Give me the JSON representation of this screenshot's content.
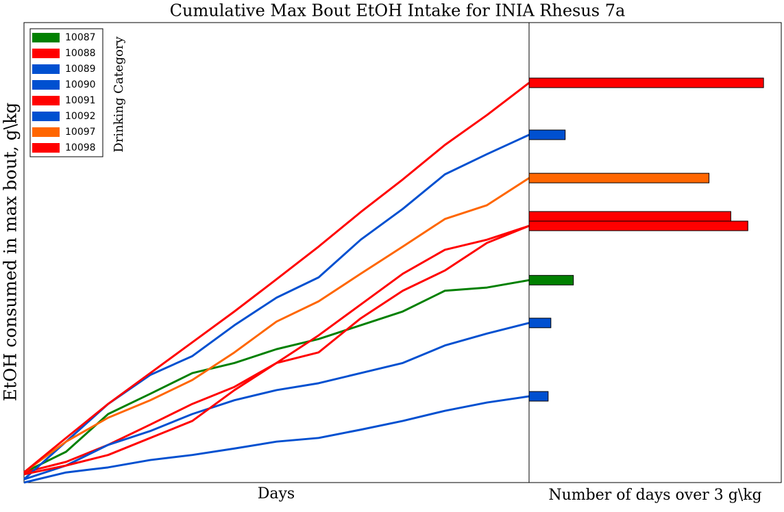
{
  "chart_data": {
    "type": "line",
    "title": "Cumulative Max Bout EtOH Intake for INIA Rhesus 7a",
    "x_label": "Days",
    "y_label": "EtOH consumed in max bout, g\\kg",
    "legend_title": "Drinking Category",
    "bar_label": "Number of days over  3 g\\kg",
    "legend": "upper left",
    "x": [
      0,
      3,
      6,
      9,
      12,
      15,
      18,
      21,
      24,
      27,
      30,
      33,
      36
    ],
    "xlim": [
      0,
      36
    ],
    "ylim": [
      0,
      100
    ],
    "bar_xlim": [
      0,
      37
    ],
    "series": [
      {
        "name": "10087",
        "color": "#008000",
        "values": [
          2.2,
          6.7,
          14.9,
          19.3,
          23.8,
          26.0,
          29.0,
          31.2,
          34.2,
          37.2,
          41.7,
          42.4,
          44.0
        ],
        "days_over": 6.5
      },
      {
        "name": "10088",
        "color": "#ff0000",
        "values": [
          2.2,
          4.5,
          8.2,
          12.6,
          17.1,
          20.8,
          26.0,
          32.0,
          38.7,
          45.4,
          50.6,
          52.8,
          55.8
        ],
        "days_over": 32.1
      },
      {
        "name": "10089",
        "color": "#0050d0",
        "values": [
          0.7,
          8.9,
          17.1,
          23.4,
          27.5,
          34.2,
          40.2,
          44.6,
          52.8,
          59.5,
          67.0,
          71.4,
          75.6
        ],
        "days_over": 5.3
      },
      {
        "name": "10090",
        "color": "#0050d0",
        "values": [
          0.7,
          3.7,
          8.2,
          11.2,
          14.9,
          17.9,
          20.1,
          21.6,
          23.8,
          26.0,
          29.8,
          32.4,
          34.7
        ],
        "days_over": 3.2
      },
      {
        "name": "10091",
        "color": "#ff0000",
        "values": [
          1.8,
          3.7,
          6.0,
          9.7,
          13.4,
          20.1,
          26.0,
          28.3,
          35.7,
          41.7,
          46.1,
          52.1,
          55.8
        ],
        "days_over": 29.6
      },
      {
        "name": "10092",
        "color": "#0050d0",
        "values": [
          0,
          2.2,
          3.3,
          4.9,
          6.0,
          7.4,
          8.9,
          9.7,
          11.5,
          13.4,
          15.6,
          17.4,
          18.75
        ],
        "days_over": 2.8
      },
      {
        "name": "10097",
        "color": "#ff6600",
        "values": [
          2.2,
          8.9,
          14.1,
          17.9,
          22.3,
          28.3,
          35.0,
          39.4,
          45.4,
          51.3,
          57.3,
          60.3,
          66.2
        ],
        "days_over": 26.4
      },
      {
        "name": "10098",
        "color": "#ff0000",
        "values": [
          2.2,
          9.7,
          17.1,
          23.8,
          30.5,
          37.2,
          44.2,
          51.3,
          58.8,
          65.9,
          73.4,
          79.9,
          86.9
        ],
        "days_over": 34.4
      }
    ]
  }
}
